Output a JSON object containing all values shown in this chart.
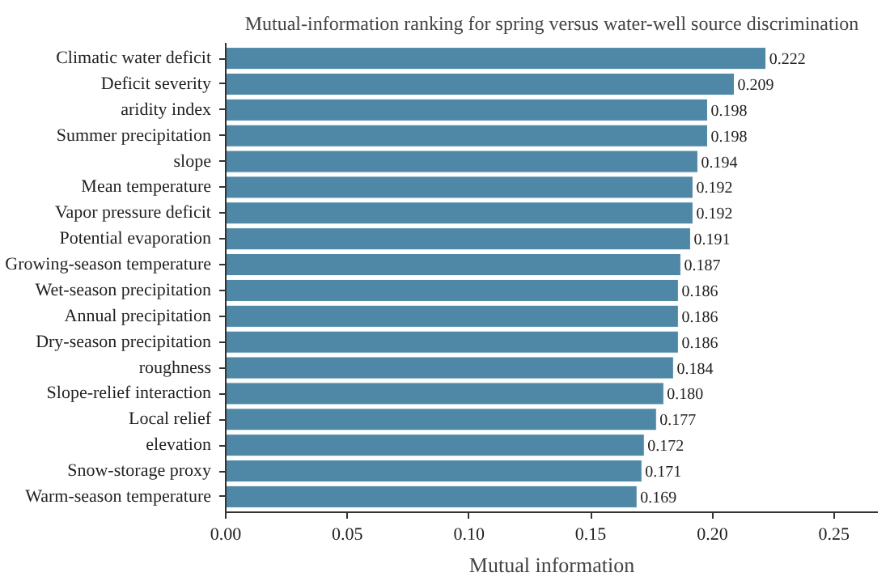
{
  "chart_data": {
    "type": "bar",
    "orientation": "horizontal",
    "title": "Mutual-information ranking for spring versus water-well source discrimination",
    "xlabel": "Mutual information",
    "categories": [
      "Climatic water deficit",
      "Deficit severity",
      "aridity index",
      "Summer precipitation",
      "slope",
      "Mean temperature",
      "Vapor pressure deficit",
      "Potential evaporation",
      "Growing-season temperature",
      "Wet-season precipitation",
      "Annual precipitation",
      "Dry-season precipitation",
      "roughness",
      "Slope-relief interaction",
      "Local relief",
      "elevation",
      "Snow-storage proxy",
      "Warm-season temperature"
    ],
    "values": [
      0.222,
      0.209,
      0.198,
      0.198,
      0.194,
      0.192,
      0.192,
      0.191,
      0.187,
      0.186,
      0.186,
      0.186,
      0.184,
      0.18,
      0.177,
      0.172,
      0.171,
      0.169
    ],
    "value_labels": [
      "0.222",
      "0.209",
      "0.198",
      "0.198",
      "0.194",
      "0.192",
      "0.192",
      "0.191",
      "0.187",
      "0.186",
      "0.186",
      "0.186",
      "0.184",
      "0.180",
      "0.177",
      "0.172",
      "0.171",
      "0.169"
    ],
    "color": "#4f88a6",
    "xlim": [
      0,
      0.268
    ],
    "xticks": [
      {
        "value": 0,
        "label": "0.00"
      },
      {
        "value": 0.05,
        "label": "0.05"
      },
      {
        "value": 0.1,
        "label": "0.10"
      },
      {
        "value": 0.15,
        "label": "0.15"
      },
      {
        "value": 0.2,
        "label": "0.20"
      },
      {
        "value": 0.25,
        "label": "0.25"
      }
    ],
    "grid": false
  }
}
